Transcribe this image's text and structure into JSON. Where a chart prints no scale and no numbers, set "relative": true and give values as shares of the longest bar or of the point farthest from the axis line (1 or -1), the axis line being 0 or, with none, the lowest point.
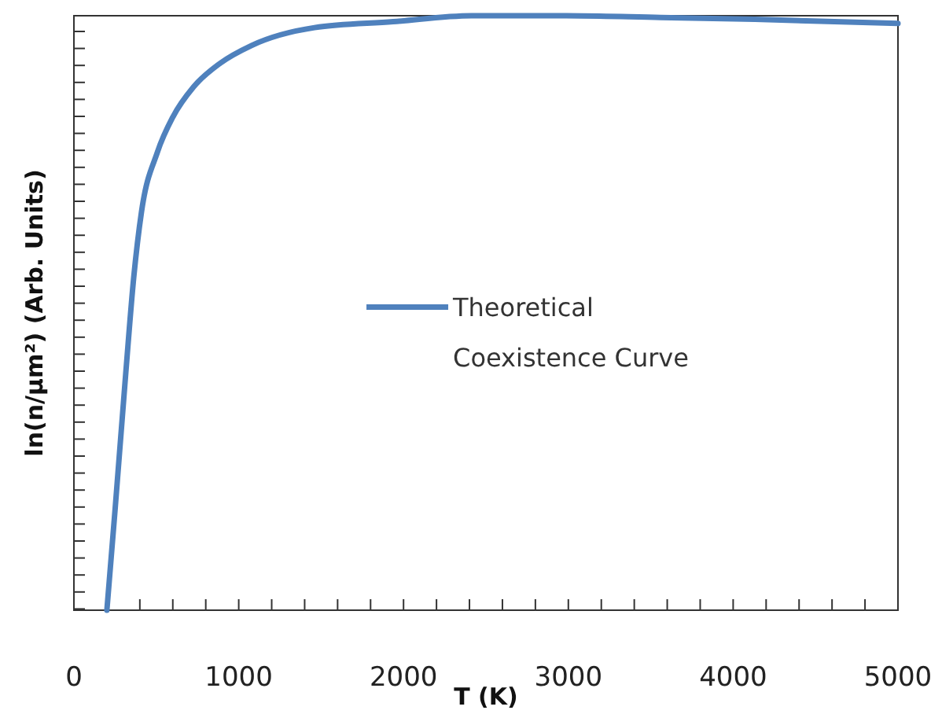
{
  "chart_data": {
    "type": "line",
    "xlabel": "T (K)",
    "ylabel": "ln(n/μm²) (Arb. Units)",
    "relative": true,
    "legend": "center",
    "marker": "none",
    "line_style": "solid",
    "grid": false,
    "xlim": [
      0,
      5000
    ],
    "xticks": [
      0,
      {
        "value": 200,
        "label": null
      },
      {
        "value": 400,
        "label": null
      },
      {
        "value": 600,
        "label": null
      },
      {
        "value": 800,
        "label": null
      },
      1000,
      {
        "value": 1200,
        "label": null
      },
      {
        "value": 1400,
        "label": null
      },
      {
        "value": 1600,
        "label": null
      },
      {
        "value": 1800,
        "label": null
      },
      2000,
      {
        "value": 2200,
        "label": null
      },
      {
        "value": 2400,
        "label": null
      },
      {
        "value": 2600,
        "label": null
      },
      {
        "value": 2800,
        "label": null
      },
      3000,
      {
        "value": 3200,
        "label": null
      },
      {
        "value": 3400,
        "label": null
      },
      {
        "value": 3600,
        "label": null
      },
      {
        "value": 3800,
        "label": null
      },
      4000,
      {
        "value": 4200,
        "label": null
      },
      {
        "value": 4400,
        "label": null
      },
      {
        "value": 4600,
        "label": null
      },
      {
        "value": 4800,
        "label": null
      },
      5000
    ],
    "series": [
      {
        "name": "Theoretical Coexistence Curve",
        "color": "#4f81bd",
        "x": [
          200,
          250,
          315,
          363,
          410,
          506,
          601,
          725,
          887,
          1078,
          1460,
          1937,
          2414,
          2987,
          3560,
          4132,
          5000
        ],
        "values": [
          0,
          0.17,
          0.4,
          0.56,
          0.67,
          0.77,
          0.83,
          0.88,
          0.92,
          0.95,
          0.98,
          0.99,
          1,
          1,
          0.997,
          0.994,
          0.987
        ]
      }
    ]
  }
}
